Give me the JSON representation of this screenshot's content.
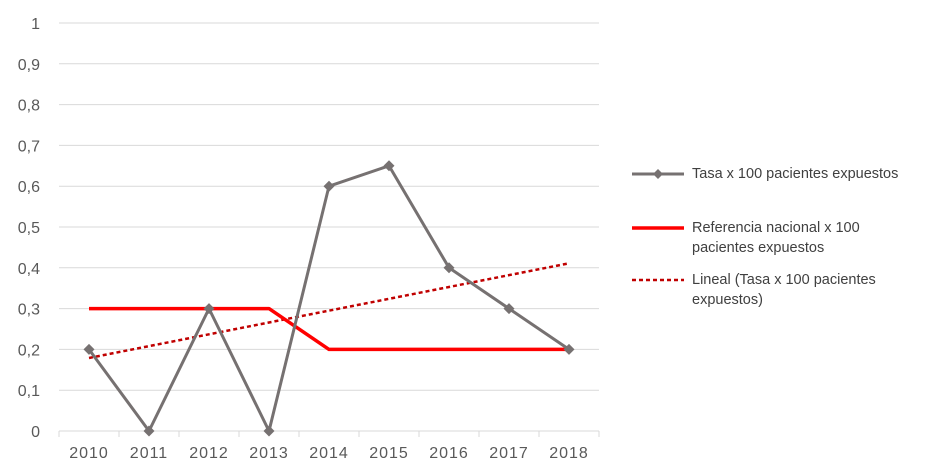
{
  "chart_data": {
    "type": "line",
    "categories": [
      "2010",
      "2011",
      "2012",
      "2013",
      "2014",
      "2015",
      "2016",
      "2017",
      "2018"
    ],
    "ylim": [
      0,
      1
    ],
    "yticks": [
      "0",
      "0,1",
      "0,2",
      "0,3",
      "0,4",
      "0,5",
      "0,6",
      "0,7",
      "0,8",
      "0,9",
      "1"
    ],
    "grid": true,
    "legend_position": "right",
    "series": [
      {
        "name": "Tasa x 100 pacientes expuestos",
        "values": [
          0.2,
          0,
          0.3,
          0,
          0.6,
          0.65,
          0.4,
          0.3,
          0.2
        ],
        "color": "#767171",
        "marker": "diamond",
        "style": "solid"
      },
      {
        "name": "Referencia nacional x 100 pacientes expuestos",
        "values": [
          0.3,
          0.3,
          0.3,
          0.3,
          0.2,
          0.2,
          0.2,
          0.2,
          0.2
        ],
        "color": "#ff0000",
        "style": "solid"
      },
      {
        "name": "Lineal (Tasa x 100 pacientes expuestos)",
        "values": [
          0.179,
          0.208,
          0.237,
          0.266,
          0.295,
          0.324,
          0.353,
          0.382,
          0.411
        ],
        "color": "#c00000",
        "style": "dashed"
      }
    ]
  }
}
